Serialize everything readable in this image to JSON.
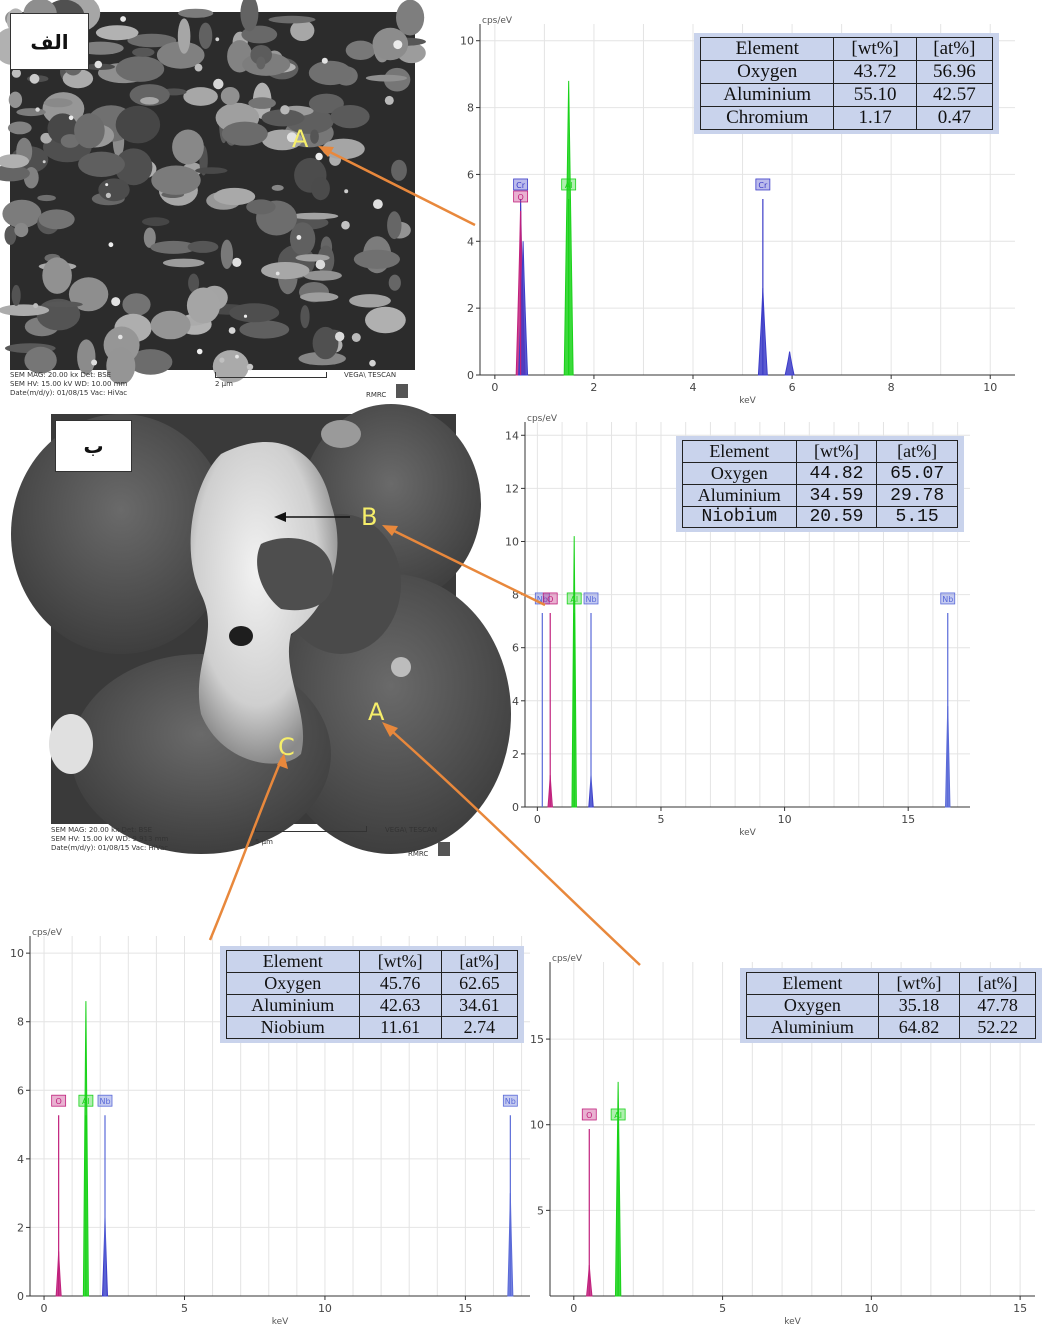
{
  "panels": {
    "alef": {
      "label": "الف",
      "sem_footer": [
        "SEM MAG: 20.00 kx    Det: BSE",
        "SEM HV: 15.00 kV     WD: 10.00 mm",
        "Date(m/d/y): 01/08/15  Vac: HiVac"
      ],
      "scale_text": "2 μm",
      "brand": "VEGA\\ TESCAN",
      "lab": "RMRC",
      "point": "A"
    },
    "be": {
      "label": "ب",
      "sem_footer": [
        "SEM MAG: 20.00 kx    Det: BSE",
        "SEM HV: 15.00 kV     WD: 9.913 mm",
        "Date(m/d/y): 01/08/15  Vac: HiVac"
      ],
      "scale_text": "5 μm",
      "brand": "VEGA\\ TESCAN",
      "lab": "RMRC",
      "points": [
        "B",
        "A",
        "C"
      ]
    }
  },
  "colors": {
    "oxygen": "#c0207c",
    "aluminium": "#19d219",
    "chromium": "#3c3cc8",
    "niobium": "#5a6ad8",
    "table_bg": "#c9d3ec",
    "arrow": "#e8883c",
    "point_label": "#f6ee6a"
  },
  "chart_data": [
    {
      "id": "spectrum-alef",
      "type": "line",
      "ylabel": "cps/eV",
      "xlabel": "keV",
      "xlim": [
        -0.3,
        10.5
      ],
      "ylim": [
        0,
        10.5
      ],
      "xticks": [
        0,
        2,
        4,
        6,
        8,
        10
      ],
      "yticks": [
        0,
        2,
        4,
        6,
        8,
        10
      ],
      "peaks": [
        {
          "element": "O",
          "x": 0.52,
          "y": 5.1,
          "color": "#c0207c"
        },
        {
          "element": "Cr",
          "x": 0.57,
          "y": 4.0,
          "color": "#3c3cc8"
        },
        {
          "element": "Al",
          "x": 1.49,
          "y": 8.8,
          "color": "#19d219"
        },
        {
          "element": "Cr",
          "x": 5.41,
          "y": 2.6,
          "color": "#3c3cc8"
        },
        {
          "element": "Cr",
          "x": 5.95,
          "y": 0.7,
          "color": "#3c3cc8"
        }
      ],
      "markers": [
        {
          "text": "Cr",
          "x": 0.52,
          "color": "#3c3cc8"
        },
        {
          "text": "O",
          "x": 0.52,
          "color": "#c0207c"
        },
        {
          "text": "Al",
          "x": 1.49,
          "color": "#19d219"
        },
        {
          "text": "Cr",
          "x": 5.41,
          "color": "#3c3cc8"
        }
      ],
      "table": {
        "headers": [
          "Element",
          "[wt%]",
          "[at%]"
        ],
        "rows": [
          [
            "Oxygen",
            "43.72",
            "56.96"
          ],
          [
            "Aluminium",
            "55.10",
            "42.57"
          ],
          [
            "Chromium",
            "1.17",
            "0.47"
          ]
        ]
      }
    },
    {
      "id": "spectrum-be",
      "type": "line",
      "ylabel": "cps/eV",
      "xlabel": "keV",
      "xlim": [
        -0.5,
        17.5
      ],
      "ylim": [
        0,
        14.5
      ],
      "xticks": [
        0,
        5,
        10,
        15
      ],
      "yticks": [
        0,
        2,
        4,
        6,
        8,
        10,
        12,
        14
      ],
      "peaks": [
        {
          "element": "O",
          "x": 0.52,
          "y": 1.2,
          "color": "#c0207c"
        },
        {
          "element": "Al",
          "x": 1.49,
          "y": 10.2,
          "color": "#19d219"
        },
        {
          "element": "Nb",
          "x": 2.17,
          "y": 1.2,
          "color": "#3c3cc8"
        },
        {
          "element": "Nb",
          "x": 16.6,
          "y": 3.8,
          "color": "#5a6ad8"
        }
      ],
      "markers": [
        {
          "text": "Nb",
          "x": 0.2,
          "color": "#5a6ad8"
        },
        {
          "text": "O",
          "x": 0.52,
          "color": "#c0207c"
        },
        {
          "text": "Al",
          "x": 1.49,
          "color": "#19d219"
        },
        {
          "text": "Nb",
          "x": 2.17,
          "color": "#5a6ad8"
        },
        {
          "text": "Nb",
          "x": 16.6,
          "color": "#5a6ad8"
        }
      ],
      "table": {
        "headers": [
          "Element",
          "[wt%]",
          "[at%]"
        ],
        "rows": [
          [
            "Oxygen",
            "44.82",
            "65.07"
          ],
          [
            "Aluminium",
            "34.59",
            "29.78"
          ],
          [
            "Niobium",
            "20.59",
            "5.15"
          ]
        ]
      }
    },
    {
      "id": "spectrum-c",
      "type": "line",
      "ylabel": "cps/eV",
      "xlabel": "keV",
      "xlim": [
        -0.5,
        17.3
      ],
      "ylim": [
        0,
        10.5
      ],
      "xticks": [
        0,
        5,
        10,
        15
      ],
      "yticks": [
        0,
        2,
        4,
        6,
        8,
        10
      ],
      "peaks": [
        {
          "element": "O",
          "x": 0.52,
          "y": 1.3,
          "color": "#c0207c"
        },
        {
          "element": "Al",
          "x": 1.49,
          "y": 8.6,
          "color": "#19d219"
        },
        {
          "element": "Nb",
          "x": 2.17,
          "y": 2.3,
          "color": "#3c3cc8"
        },
        {
          "element": "Nb",
          "x": 16.6,
          "y": 3.0,
          "color": "#5a6ad8"
        }
      ],
      "markers": [
        {
          "text": "O",
          "x": 0.52,
          "color": "#c0207c"
        },
        {
          "text": "Al",
          "x": 1.49,
          "color": "#19d219"
        },
        {
          "text": "Nb",
          "x": 2.17,
          "color": "#5a6ad8"
        },
        {
          "text": "Nb",
          "x": 16.6,
          "color": "#5a6ad8"
        }
      ],
      "table": {
        "headers": [
          "Element",
          "[wt%]",
          "[at%]"
        ],
        "rows": [
          [
            "Oxygen",
            "45.76",
            "62.65"
          ],
          [
            "Aluminium",
            "42.63",
            "34.61"
          ],
          [
            "Niobium",
            "11.61",
            "2.74"
          ]
        ]
      }
    },
    {
      "id": "spectrum-a",
      "type": "line",
      "ylabel": "cps/eV",
      "xlabel": "keV",
      "xlim": [
        -0.8,
        15.5
      ],
      "ylim": [
        0,
        19.5
      ],
      "xticks": [
        0,
        5,
        10,
        15
      ],
      "yticks": [
        5,
        10,
        15
      ],
      "peaks": [
        {
          "element": "O",
          "x": 0.52,
          "y": 1.8,
          "color": "#c0207c"
        },
        {
          "element": "Al",
          "x": 1.49,
          "y": 12.5,
          "color": "#19d219"
        }
      ],
      "markers": [
        {
          "text": "O",
          "x": 0.52,
          "color": "#c0207c"
        },
        {
          "text": "Al",
          "x": 1.49,
          "color": "#19d219"
        }
      ],
      "table": {
        "headers": [
          "Element",
          "[wt%]",
          "[at%]"
        ],
        "rows": [
          [
            "Oxygen",
            "35.18",
            "47.78"
          ],
          [
            "Aluminium",
            "64.82",
            "52.22"
          ]
        ]
      }
    }
  ]
}
